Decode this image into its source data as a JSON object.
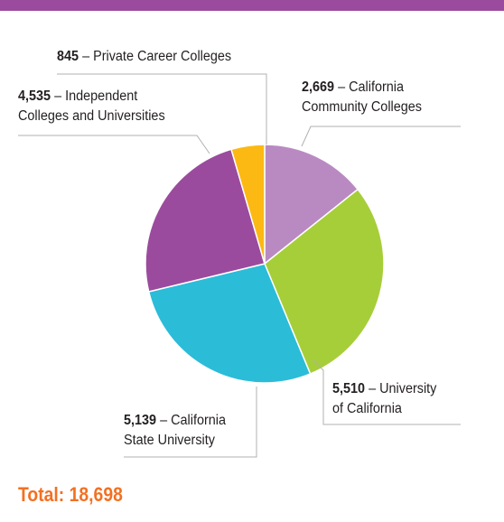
{
  "header_bar_color": "#9b4b9d",
  "chart_data": {
    "type": "pie",
    "categories": [
      "California Community Colleges",
      "University of California",
      "California State University",
      "Independent Colleges and Universities",
      "Private Career Colleges"
    ],
    "values": [
      2669,
      5510,
      5139,
      4535,
      845
    ],
    "colors": [
      "#b98ac2",
      "#a6ce39",
      "#2bbcd8",
      "#9b4b9d",
      "#fcb913"
    ],
    "labels": [
      {
        "value_text": "2,669",
        "line1": " – California",
        "line2": "Community Colleges"
      },
      {
        "value_text": "5,510",
        "line1": " – University",
        "line2": "of California"
      },
      {
        "value_text": "5,139",
        "line1": " – California",
        "line2": "State University"
      },
      {
        "value_text": "4,535",
        "line1": " – Independent",
        "line2": "Colleges and Universities"
      },
      {
        "value_text": "845",
        "line1": " – Private Career Colleges",
        "line2": ""
      }
    ]
  },
  "total": {
    "label": "Total: 18,698",
    "color": "#f37021"
  }
}
